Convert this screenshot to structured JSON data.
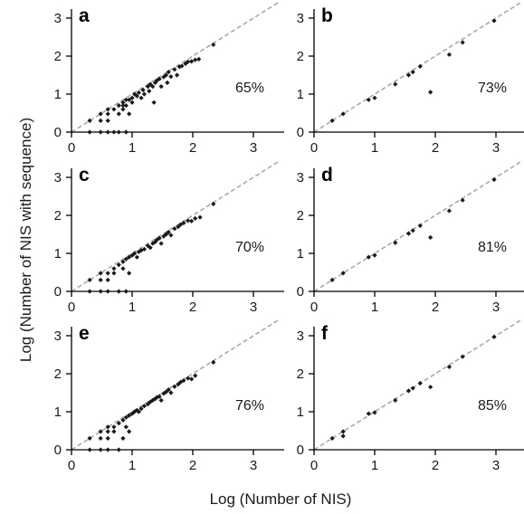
{
  "figure": {
    "xlabel": "Log (Number of NIS)",
    "ylabel": "Log (Number of NIS with sequence)"
  },
  "chart_data": [
    {
      "type": "scatter",
      "panel": "a",
      "percent_label": "65%",
      "xlim": [
        0,
        3.5
      ],
      "ylim": [
        0,
        3.4
      ],
      "xticks": [
        "0",
        "1",
        "2",
        "3"
      ],
      "yticks": [
        "0",
        "1",
        "2",
        "3"
      ],
      "reference_line": "y = x",
      "points": [
        [
          0.3,
          0.3
        ],
        [
          0.3,
          0.0
        ],
        [
          0.48,
          0.0
        ],
        [
          0.48,
          0.3
        ],
        [
          0.48,
          0.48
        ],
        [
          0.6,
          0.0
        ],
        [
          0.6,
          0.3
        ],
        [
          0.6,
          0.48
        ],
        [
          0.6,
          0.6
        ],
        [
          0.7,
          0.0
        ],
        [
          0.7,
          0.6
        ],
        [
          0.78,
          0.0
        ],
        [
          0.78,
          0.7
        ],
        [
          0.78,
          0.48
        ],
        [
          0.85,
          0.6
        ],
        [
          0.85,
          0.78
        ],
        [
          0.85,
          0.7
        ],
        [
          0.9,
          0.0
        ],
        [
          0.9,
          0.85
        ],
        [
          0.9,
          0.7
        ],
        [
          0.95,
          0.48
        ],
        [
          0.95,
          0.85
        ],
        [
          1.0,
          0.9
        ],
        [
          1.0,
          0.78
        ],
        [
          1.04,
          1.0
        ],
        [
          1.08,
          0.95
        ],
        [
          1.11,
          1.04
        ],
        [
          1.15,
          0.9
        ],
        [
          1.18,
          1.11
        ],
        [
          1.2,
          1.0
        ],
        [
          1.26,
          1.2
        ],
        [
          1.28,
          1.08
        ],
        [
          1.3,
          1.26
        ],
        [
          1.34,
          1.2
        ],
        [
          1.36,
          0.78
        ],
        [
          1.38,
          1.3
        ],
        [
          1.41,
          1.36
        ],
        [
          1.45,
          1.4
        ],
        [
          1.48,
          1.2
        ],
        [
          1.52,
          1.45
        ],
        [
          1.56,
          1.5
        ],
        [
          1.58,
          1.3
        ],
        [
          1.6,
          1.58
        ],
        [
          1.64,
          1.46
        ],
        [
          1.7,
          1.65
        ],
        [
          1.74,
          1.5
        ],
        [
          1.78,
          1.72
        ],
        [
          1.82,
          1.74
        ],
        [
          1.88,
          1.8
        ],
        [
          1.92,
          1.85
        ],
        [
          1.98,
          1.86
        ],
        [
          2.04,
          1.9
        ],
        [
          2.1,
          1.92
        ],
        [
          2.34,
          2.3
        ]
      ]
    },
    {
      "type": "scatter",
      "panel": "b",
      "percent_label": "73%",
      "xlim": [
        0,
        3.5
      ],
      "ylim": [
        0,
        3.4
      ],
      "xticks": [
        "0",
        "1",
        "2",
        "3"
      ],
      "yticks": [
        "0",
        "1",
        "2",
        "3"
      ],
      "reference_line": "y = x",
      "points": [
        [
          0.3,
          0.3
        ],
        [
          0.48,
          0.48
        ],
        [
          0.9,
          0.85
        ],
        [
          1.0,
          0.9
        ],
        [
          1.34,
          1.26
        ],
        [
          1.56,
          1.5
        ],
        [
          1.63,
          1.58
        ],
        [
          1.75,
          1.73
        ],
        [
          1.92,
          1.05
        ],
        [
          2.23,
          2.04
        ],
        [
          2.45,
          2.36
        ],
        [
          2.97,
          2.93
        ]
      ]
    },
    {
      "type": "scatter",
      "panel": "c",
      "percent_label": "70%",
      "xlim": [
        0,
        3.5
      ],
      "ylim": [
        0,
        3.4
      ],
      "xticks": [
        "0",
        "1",
        "2",
        "3"
      ],
      "yticks": [
        "0",
        "1",
        "2",
        "3"
      ],
      "reference_line": "y = x",
      "points": [
        [
          0.3,
          0.3
        ],
        [
          0.3,
          0.0
        ],
        [
          0.48,
          0.0
        ],
        [
          0.48,
          0.3
        ],
        [
          0.48,
          0.48
        ],
        [
          0.6,
          0.0
        ],
        [
          0.6,
          0.3
        ],
        [
          0.6,
          0.48
        ],
        [
          0.7,
          0.48
        ],
        [
          0.7,
          0.6
        ],
        [
          0.78,
          0.7
        ],
        [
          0.78,
          0.0
        ],
        [
          0.85,
          0.78
        ],
        [
          0.85,
          0.6
        ],
        [
          0.9,
          0.85
        ],
        [
          0.9,
          0.0
        ],
        [
          0.95,
          0.48
        ],
        [
          0.95,
          0.9
        ],
        [
          1.0,
          0.95
        ],
        [
          1.04,
          1.0
        ],
        [
          1.08,
          0.9
        ],
        [
          1.11,
          1.04
        ],
        [
          1.15,
          1.08
        ],
        [
          1.2,
          1.11
        ],
        [
          1.26,
          1.2
        ],
        [
          1.3,
          1.15
        ],
        [
          1.34,
          1.26
        ],
        [
          1.38,
          1.3
        ],
        [
          1.41,
          1.36
        ],
        [
          1.45,
          1.4
        ],
        [
          1.48,
          1.26
        ],
        [
          1.52,
          1.45
        ],
        [
          1.56,
          1.5
        ],
        [
          1.6,
          1.56
        ],
        [
          1.64,
          1.48
        ],
        [
          1.7,
          1.65
        ],
        [
          1.76,
          1.7
        ],
        [
          1.8,
          1.76
        ],
        [
          1.85,
          1.8
        ],
        [
          1.92,
          1.86
        ],
        [
          1.98,
          1.85
        ],
        [
          2.04,
          1.92
        ],
        [
          2.12,
          1.95
        ],
        [
          2.34,
          2.3
        ]
      ]
    },
    {
      "type": "scatter",
      "panel": "d",
      "percent_label": "81%",
      "xlim": [
        0,
        3.5
      ],
      "ylim": [
        0,
        3.4
      ],
      "xticks": [
        "0",
        "1",
        "2",
        "3"
      ],
      "yticks": [
        "0",
        "1",
        "2",
        "3"
      ],
      "reference_line": "y = x",
      "points": [
        [
          0.3,
          0.3
        ],
        [
          0.48,
          0.48
        ],
        [
          0.9,
          0.9
        ],
        [
          1.0,
          0.95
        ],
        [
          1.34,
          1.28
        ],
        [
          1.56,
          1.52
        ],
        [
          1.63,
          1.6
        ],
        [
          1.75,
          1.73
        ],
        [
          1.92,
          1.42
        ],
        [
          2.23,
          2.12
        ],
        [
          2.45,
          2.4
        ],
        [
          2.97,
          2.94
        ]
      ]
    },
    {
      "type": "scatter",
      "panel": "e",
      "percent_label": "76%",
      "xlim": [
        0,
        3.5
      ],
      "ylim": [
        0,
        3.4
      ],
      "xticks": [
        "0",
        "1",
        "2",
        "3"
      ],
      "yticks": [
        "0",
        "1",
        "2",
        "3"
      ],
      "reference_line": "y = x",
      "points": [
        [
          0.3,
          0.3
        ],
        [
          0.3,
          0.0
        ],
        [
          0.48,
          0.0
        ],
        [
          0.48,
          0.3
        ],
        [
          0.48,
          0.48
        ],
        [
          0.6,
          0.0
        ],
        [
          0.6,
          0.3
        ],
        [
          0.6,
          0.48
        ],
        [
          0.6,
          0.6
        ],
        [
          0.7,
          0.48
        ],
        [
          0.7,
          0.6
        ],
        [
          0.78,
          0.0
        ],
        [
          0.78,
          0.7
        ],
        [
          0.85,
          0.78
        ],
        [
          0.85,
          0.3
        ],
        [
          0.9,
          0.85
        ],
        [
          0.9,
          0.6
        ],
        [
          0.95,
          0.48
        ],
        [
          0.95,
          0.9
        ],
        [
          1.0,
          0.95
        ],
        [
          1.04,
          1.0
        ],
        [
          1.08,
          1.04
        ],
        [
          1.11,
          1.0
        ],
        [
          1.15,
          1.08
        ],
        [
          1.2,
          1.15
        ],
        [
          1.26,
          1.2
        ],
        [
          1.3,
          1.26
        ],
        [
          1.34,
          1.3
        ],
        [
          1.38,
          1.34
        ],
        [
          1.41,
          1.38
        ],
        [
          1.45,
          1.4
        ],
        [
          1.48,
          1.3
        ],
        [
          1.52,
          1.48
        ],
        [
          1.56,
          1.52
        ],
        [
          1.6,
          1.58
        ],
        [
          1.64,
          1.5
        ],
        [
          1.7,
          1.66
        ],
        [
          1.76,
          1.72
        ],
        [
          1.8,
          1.78
        ],
        [
          1.85,
          1.82
        ],
        [
          1.92,
          1.88
        ],
        [
          1.98,
          1.86
        ],
        [
          2.04,
          1.95
        ],
        [
          2.34,
          2.3
        ]
      ]
    },
    {
      "type": "scatter",
      "panel": "f",
      "percent_label": "85%",
      "xlim": [
        0,
        3.5
      ],
      "ylim": [
        0,
        3.4
      ],
      "xticks": [
        "0",
        "1",
        "2",
        "3"
      ],
      "yticks": [
        "0",
        "1",
        "2",
        "3"
      ],
      "reference_line": "y = x",
      "points": [
        [
          0.3,
          0.3
        ],
        [
          0.48,
          0.48
        ],
        [
          0.48,
          0.36
        ],
        [
          0.9,
          0.95
        ],
        [
          1.0,
          0.98
        ],
        [
          1.34,
          1.3
        ],
        [
          1.56,
          1.55
        ],
        [
          1.63,
          1.62
        ],
        [
          1.75,
          1.75
        ],
        [
          1.92,
          1.65
        ],
        [
          2.23,
          2.18
        ],
        [
          2.45,
          2.45
        ],
        [
          2.97,
          2.97
        ]
      ]
    }
  ]
}
